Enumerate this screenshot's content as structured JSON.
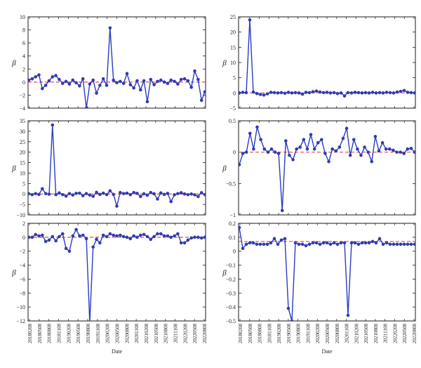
{
  "x_ticks": [
    "20180208",
    "20180508",
    "20180808",
    "20181108",
    "20190208",
    "20190508",
    "20190808",
    "20191108",
    "20200208",
    "20200508",
    "20200808",
    "20201108",
    "20210208",
    "20210508",
    "20210808",
    "20211108",
    "20220208",
    "20220508",
    "20220808"
  ],
  "chart_data": [
    {
      "type": "line",
      "panel": "top-left",
      "ylabel": "β",
      "ylim": [
        -4,
        10
      ],
      "yticks": [
        -4,
        -2,
        0,
        2,
        4,
        6,
        8,
        10
      ],
      "ytick_labels": [
        "−4",
        "−2",
        "0",
        "2",
        "4",
        "6",
        "8",
        "10"
      ],
      "reference_line": 0,
      "values": [
        0.3,
        0.5,
        0.8,
        1.1,
        -1.0,
        -0.5,
        0.2,
        0.8,
        1.0,
        0.4,
        -0.2,
        0.1,
        -0.3,
        0.3,
        -0.1,
        -0.6,
        0.5,
        -4.0,
        -0.3,
        0.3,
        -1.7,
        -0.5,
        0.5,
        -0.5,
        8.3,
        0.3,
        -0.1,
        0.1,
        -0.2,
        1.3,
        -0.4,
        -0.9,
        0.2,
        -1.2,
        0.2,
        -3.0,
        0.4,
        -0.4,
        0.1,
        0.3,
        0.0,
        -0.2,
        0.3,
        0.1,
        -0.3,
        0.4,
        0.5,
        0.2,
        -0.8,
        1.7,
        0.4,
        -2.8,
        -1.5
      ]
    },
    {
      "type": "line",
      "panel": "top-right",
      "ylabel": "β",
      "ylim": [
        -5,
        25
      ],
      "yticks": [
        -5,
        0,
        5,
        10,
        15,
        20,
        25
      ],
      "ytick_labels": [
        "−5",
        "0",
        "5",
        "10",
        "15",
        "20",
        "25"
      ],
      "reference_line": 0,
      "values": [
        0.0,
        0.2,
        0.1,
        24.0,
        0.3,
        -0.2,
        -0.5,
        -0.7,
        -0.3,
        0.2,
        0.1,
        0.0,
        0.1,
        -0.1,
        0.2,
        0.0,
        0.1,
        0.0,
        -0.4,
        0.2,
        0.1,
        0.4,
        0.6,
        0.3,
        0.1,
        0.2,
        0.0,
        0.1,
        -0.2,
        0.0,
        -1.0,
        0.1,
        0.0,
        0.2,
        0.1,
        0.0,
        0.1,
        0.0,
        0.2,
        0.0,
        0.1,
        0.0,
        0.2,
        0.1,
        0.0,
        0.3,
        0.5,
        0.8,
        0.2,
        0.1,
        0.0
      ]
    },
    {
      "type": "line",
      "panel": "middle-left",
      "ylabel": "β",
      "ylim": [
        -10,
        35
      ],
      "yticks": [
        -10,
        -5,
        0,
        5,
        10,
        15,
        20,
        25,
        30,
        35
      ],
      "ytick_labels": [
        "−10",
        "−5",
        "0",
        "5",
        "10",
        "15",
        "20",
        "25",
        "30",
        "35"
      ],
      "reference_line": 0,
      "values": [
        0.1,
        -0.3,
        0.2,
        -0.2,
        2.5,
        0.2,
        -0.1,
        33.0,
        -0.3,
        0.5,
        -0.3,
        -1.0,
        0.2,
        -0.5,
        0.3,
        0.4,
        -0.8,
        0.2,
        -0.5,
        -1.1,
        0.8,
        -0.2,
        0.4,
        -0.3,
        1.5,
        -0.2,
        -5.8,
        0.7,
        0.2,
        0.4,
        -0.3,
        0.7,
        0.3,
        -1.2,
        0.1,
        -0.6,
        0.7,
        0.1,
        -2.4,
        0.5,
        -0.2,
        0.3,
        -3.6,
        -0.4,
        0.2,
        0.6,
        0.0,
        -0.3,
        0.0,
        -0.4,
        -1.2,
        0.6,
        -0.3
      ]
    },
    {
      "type": "line",
      "panel": "middle-right",
      "ylabel": "β",
      "ylim": [
        -1,
        0.5
      ],
      "yticks": [
        -1,
        -0.5,
        0,
        0.5
      ],
      "ytick_labels": [
        "−1",
        "−0.5",
        "0",
        "0.5"
      ],
      "reference_line": 0,
      "values": [
        -0.2,
        -0.02,
        0.0,
        0.3,
        0.05,
        0.4,
        0.2,
        0.05,
        0.0,
        0.05,
        0.0,
        -0.02,
        -0.93,
        0.18,
        -0.05,
        -0.12,
        0.05,
        0.08,
        0.2,
        0.05,
        0.28,
        0.05,
        0.15,
        0.2,
        -0.02,
        -0.15,
        0.05,
        0.02,
        0.08,
        0.22,
        0.38,
        -0.05,
        0.2,
        0.05,
        -0.05,
        0.08,
        0.0,
        -0.15,
        0.25,
        0.02,
        0.15,
        0.05,
        0.05,
        0.03,
        0.0,
        0.0,
        -0.02,
        0.05,
        0.06,
        0.0
      ]
    },
    {
      "type": "line",
      "panel": "bottom-left",
      "ylabel": "β",
      "ylim": [
        -12,
        2
      ],
      "yticks": [
        -12,
        -10,
        -8,
        -6,
        -4,
        -2,
        0,
        2
      ],
      "ytick_labels": [
        "−12",
        "−10",
        "−8",
        "−6",
        "−4",
        "−2",
        "0",
        "2"
      ],
      "reference_line": 0,
      "values": [
        0.0,
        0.0,
        0.4,
        0.2,
        0.3,
        -0.6,
        -0.4,
        0.1,
        -0.5,
        0.1,
        0.5,
        -1.6,
        -2.0,
        0.2,
        1.1,
        0.2,
        0.3,
        -0.2,
        -12.2,
        -1.4,
        -0.3,
        -0.8,
        0.3,
        0.1,
        0.5,
        0.3,
        0.2,
        0.3,
        0.1,
        0.0,
        -0.2,
        0.2,
        0.0,
        0.3,
        0.4,
        0.1,
        -0.3,
        0.1,
        0.5,
        0.5,
        0.2,
        0.2,
        0.0,
        0.2,
        0.5,
        -0.8,
        -0.8,
        -0.4,
        -0.1,
        0.0,
        0.0,
        -0.1,
        0.0
      ]
    },
    {
      "type": "line",
      "panel": "bottom-right",
      "ylabel": "β",
      "ylim": [
        -0.5,
        0.2
      ],
      "yticks": [
        -0.5,
        -0.4,
        -0.3,
        -0.2,
        -0.1,
        0,
        0.1,
        0.2
      ],
      "ytick_labels": [
        "−0.5",
        "−0.4",
        "−0.3",
        "−0.2",
        "−0.1",
        "0",
        "0.1",
        "0.2"
      ],
      "reference_line": 0.07,
      "values": [
        0.17,
        0.02,
        0.05,
        0.06,
        0.06,
        0.05,
        0.05,
        0.05,
        0.05,
        0.06,
        0.09,
        0.05,
        0.08,
        0.09,
        -0.41,
        -0.5,
        0.06,
        0.05,
        0.05,
        0.04,
        0.05,
        0.06,
        0.06,
        0.05,
        0.06,
        0.06,
        0.05,
        0.06,
        0.05,
        0.06,
        0.06,
        -0.46,
        0.06,
        0.06,
        0.05,
        0.06,
        0.06,
        0.06,
        0.07,
        0.06,
        0.09,
        0.05,
        0.06,
        0.05,
        0.05,
        0.05,
        0.05,
        0.05,
        0.05,
        0.05,
        0.05
      ]
    }
  ],
  "xlabel": "Date",
  "colors": {
    "line": "#2a3cc4",
    "marker_fill": "#3a3aa0",
    "reference": "#e04b4b",
    "axis": "#1a1a1a"
  }
}
